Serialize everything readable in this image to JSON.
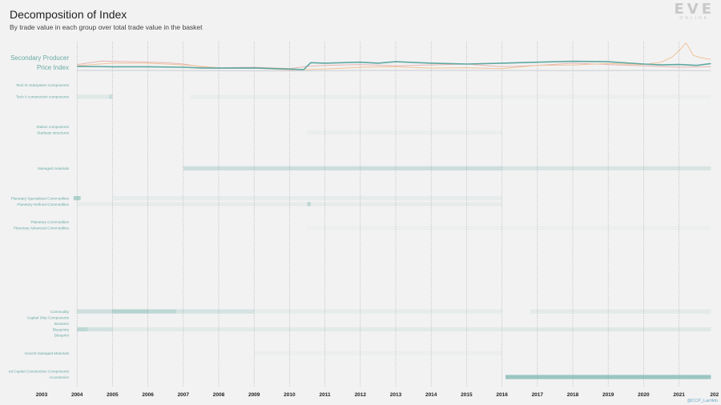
{
  "title": "Decomposition of Index",
  "subtitle": "By trade value in each group over total trade value in the basket",
  "logo": {
    "mark": "EVE",
    "sub": "ONLINE"
  },
  "credit": "@CCP_Larrikin",
  "colors": {
    "teal": "#5fa8a0",
    "pink": "#e8b5b5",
    "peach": "#f0c49a",
    "gray": "#c8ccd4",
    "label": "#6aaba4",
    "faint": "#d6dada"
  },
  "chart_data": {
    "type": "heatmap",
    "title": "Decomposition of Index",
    "subtitle": "By trade value in each group over total trade value in the basket",
    "x_ticks": [
      "2003",
      "2004",
      "2005",
      "2006",
      "2007",
      "2008",
      "2009",
      "2010",
      "2011",
      "2012",
      "2013",
      "2014",
      "2015",
      "2016",
      "2017",
      "2018",
      "2019",
      "2020",
      "2021",
      "202"
    ],
    "x_range": [
      2003,
      2021.9
    ],
    "top_series": [
      {
        "name": "Secondary Producer",
        "color": "teal",
        "x": [
          2004,
          2005,
          2006,
          2007,
          2007.5,
          2008,
          2009,
          2010,
          2010.4,
          2010.6,
          2011,
          2012,
          2012.5,
          2013,
          2014,
          2015,
          2016,
          2017,
          2018,
          2019,
          2020,
          2020.5,
          2021,
          2021.5,
          2021.9
        ],
        "y": [
          0.52,
          0.5,
          0.5,
          0.48,
          0.45,
          0.44,
          0.45,
          0.4,
          0.38,
          0.68,
          0.66,
          0.7,
          0.66,
          0.72,
          0.66,
          0.62,
          0.66,
          0.7,
          0.74,
          0.72,
          0.62,
          0.58,
          0.6,
          0.56,
          0.64
        ]
      },
      {
        "name": "Price Index",
        "color": "gray",
        "x": [
          2004,
          2006,
          2008,
          2010,
          2012,
          2014,
          2016,
          2018,
          2020,
          2021.9
        ],
        "y": [
          0.34,
          0.34,
          0.33,
          0.32,
          0.34,
          0.34,
          0.34,
          0.33,
          0.34,
          0.33
        ]
      },
      {
        "name": "",
        "color": "pink",
        "x": [
          2004,
          2004.7,
          2005.5,
          2006.5,
          2007,
          2007.5,
          2008,
          2009,
          2010,
          2010.5,
          2011,
          2012,
          2013,
          2014,
          2015,
          2016,
          2017,
          2018,
          2019,
          2020,
          2021,
          2021.9
        ],
        "y": [
          0.6,
          0.75,
          0.72,
          0.68,
          0.62,
          0.5,
          0.46,
          0.48,
          0.42,
          0.52,
          0.56,
          0.6,
          0.54,
          0.58,
          0.62,
          0.5,
          0.56,
          0.66,
          0.6,
          0.54,
          0.48,
          0.5
        ]
      },
      {
        "name": "",
        "color": "peach",
        "x": [
          2004,
          2005,
          2006,
          2007,
          2008,
          2009,
          2010,
          2011,
          2012,
          2013,
          2014,
          2015,
          2016,
          2017,
          2018,
          2019,
          2020,
          2020.5,
          2020.8,
          2021,
          2021.2,
          2021.4,
          2021.6,
          2021.9
        ],
        "y": [
          0.55,
          0.66,
          0.66,
          0.58,
          0.46,
          0.44,
          0.36,
          0.4,
          0.48,
          0.5,
          0.44,
          0.46,
          0.42,
          0.56,
          0.58,
          0.64,
          0.6,
          0.7,
          0.92,
          1.2,
          1.55,
          1.0,
          0.9,
          0.82
        ]
      }
    ],
    "top_labels": [
      "Secondary Producer",
      "Price Index"
    ],
    "rows": [
      {
        "label": "Tech III Subsystem Components",
        "faint": false,
        "cells": []
      },
      {
        "label": "",
        "faint": true,
        "cells": []
      },
      {
        "label": "Tech II construction components",
        "faint": false,
        "cells": [
          [
            2004,
            2004.9,
            0.12
          ],
          [
            2004.9,
            2005,
            0.3
          ],
          [
            2007.2,
            2016,
            0.06
          ],
          [
            2016,
            2021.9,
            0.04
          ]
        ]
      },
      {
        "label": "",
        "faint": true,
        "cells": []
      },
      {
        "label": "",
        "faint": true,
        "cells": []
      },
      {
        "label": "",
        "faint": true,
        "cells": []
      },
      {
        "label": "",
        "faint": true,
        "cells": []
      },
      {
        "label": "Station components",
        "faint": false,
        "cells": []
      },
      {
        "label": "Starbase structures",
        "faint": false,
        "cells": [
          [
            2010.5,
            2016,
            0.05
          ]
        ]
      },
      {
        "label": "",
        "faint": true,
        "cells": []
      },
      {
        "label": "",
        "faint": true,
        "cells": []
      },
      {
        "label": "",
        "faint": true,
        "cells": []
      },
      {
        "label": "",
        "faint": true,
        "cells": []
      },
      {
        "label": "",
        "faint": true,
        "cells": []
      },
      {
        "label": "Salvaged materials",
        "faint": false,
        "cells": [
          [
            2007,
            2016,
            0.26
          ],
          [
            2016,
            2021.9,
            0.18
          ]
        ]
      },
      {
        "label": "",
        "faint": true,
        "cells": []
      },
      {
        "label": "",
        "faint": true,
        "cells": []
      },
      {
        "label": "",
        "faint": true,
        "cells": []
      },
      {
        "label": "",
        "faint": true,
        "cells": []
      },
      {
        "label": "Planetary Specialized Commodities",
        "faint": false,
        "cells": [
          [
            2003.9,
            2004.1,
            0.45
          ],
          [
            2005,
            2016,
            0.08
          ]
        ]
      },
      {
        "label": "Planetary Refined Commodities",
        "faint": false,
        "cells": [
          [
            2004,
            2016,
            0.07
          ],
          [
            2010.5,
            2010.6,
            0.3
          ]
        ]
      },
      {
        "label": "",
        "faint": true,
        "cells": []
      },
      {
        "label": "",
        "faint": true,
        "cells": []
      },
      {
        "label": "Planetary Commodities",
        "faint": false,
        "cells": []
      },
      {
        "label": "Planetary Advanced Commodities",
        "faint": false,
        "cells": [
          [
            2010.5,
            2021.9,
            0.04
          ]
        ]
      },
      {
        "label": "",
        "faint": true,
        "cells": []
      },
      {
        "label": "",
        "faint": true,
        "cells": []
      },
      {
        "label": "",
        "faint": true,
        "cells": []
      },
      {
        "label": "",
        "faint": true,
        "cells": []
      },
      {
        "label": "",
        "faint": true,
        "cells": []
      },
      {
        "label": "",
        "faint": true,
        "cells": []
      },
      {
        "label": "",
        "faint": true,
        "cells": []
      },
      {
        "label": "",
        "faint": true,
        "cells": []
      },
      {
        "label": "",
        "faint": true,
        "cells": []
      },
      {
        "label": "",
        "faint": true,
        "cells": []
      },
      {
        "label": "",
        "faint": true,
        "cells": []
      },
      {
        "label": "",
        "faint": true,
        "cells": []
      },
      {
        "label": "",
        "faint": true,
        "cells": []
      },
      {
        "label": "Commodity",
        "faint": false,
        "cells": [
          [
            2004,
            2005,
            0.25
          ],
          [
            2005,
            2006,
            0.42
          ],
          [
            2006,
            2006.8,
            0.35
          ],
          [
            2006.8,
            2009,
            0.2
          ],
          [
            2009,
            2016,
            0.08
          ],
          [
            2016.8,
            2021.9,
            0.1
          ]
        ]
      },
      {
        "label": "Capital Ship Components",
        "faint": false,
        "cells": []
      },
      {
        "label": "Boosters",
        "faint": false,
        "cells": []
      },
      {
        "label": "Blueprints",
        "faint": false,
        "cells": [
          [
            2004,
            2004.3,
            0.35
          ],
          [
            2004.3,
            2005,
            0.22
          ],
          [
            2005,
            2016,
            0.1
          ],
          [
            2016,
            2021.9,
            0.12
          ]
        ]
      },
      {
        "label": "Blueprint",
        "faint": false,
        "cells": []
      },
      {
        "label": "",
        "faint": true,
        "cells": []
      },
      {
        "label": "",
        "faint": true,
        "cells": []
      },
      {
        "label": "Ancient Salvaged Materials",
        "faint": false,
        "cells": [
          [
            2009,
            2016,
            0.04
          ]
        ]
      },
      {
        "label": "",
        "faint": true,
        "cells": []
      },
      {
        "label": "",
        "faint": true,
        "cells": []
      },
      {
        "label": "ed Capital Construction Components",
        "faint": false,
        "cells": []
      },
      {
        "label": "Accessories",
        "faint": false,
        "cells": [
          [
            2016.1,
            2021.9,
            0.6
          ]
        ]
      }
    ]
  }
}
